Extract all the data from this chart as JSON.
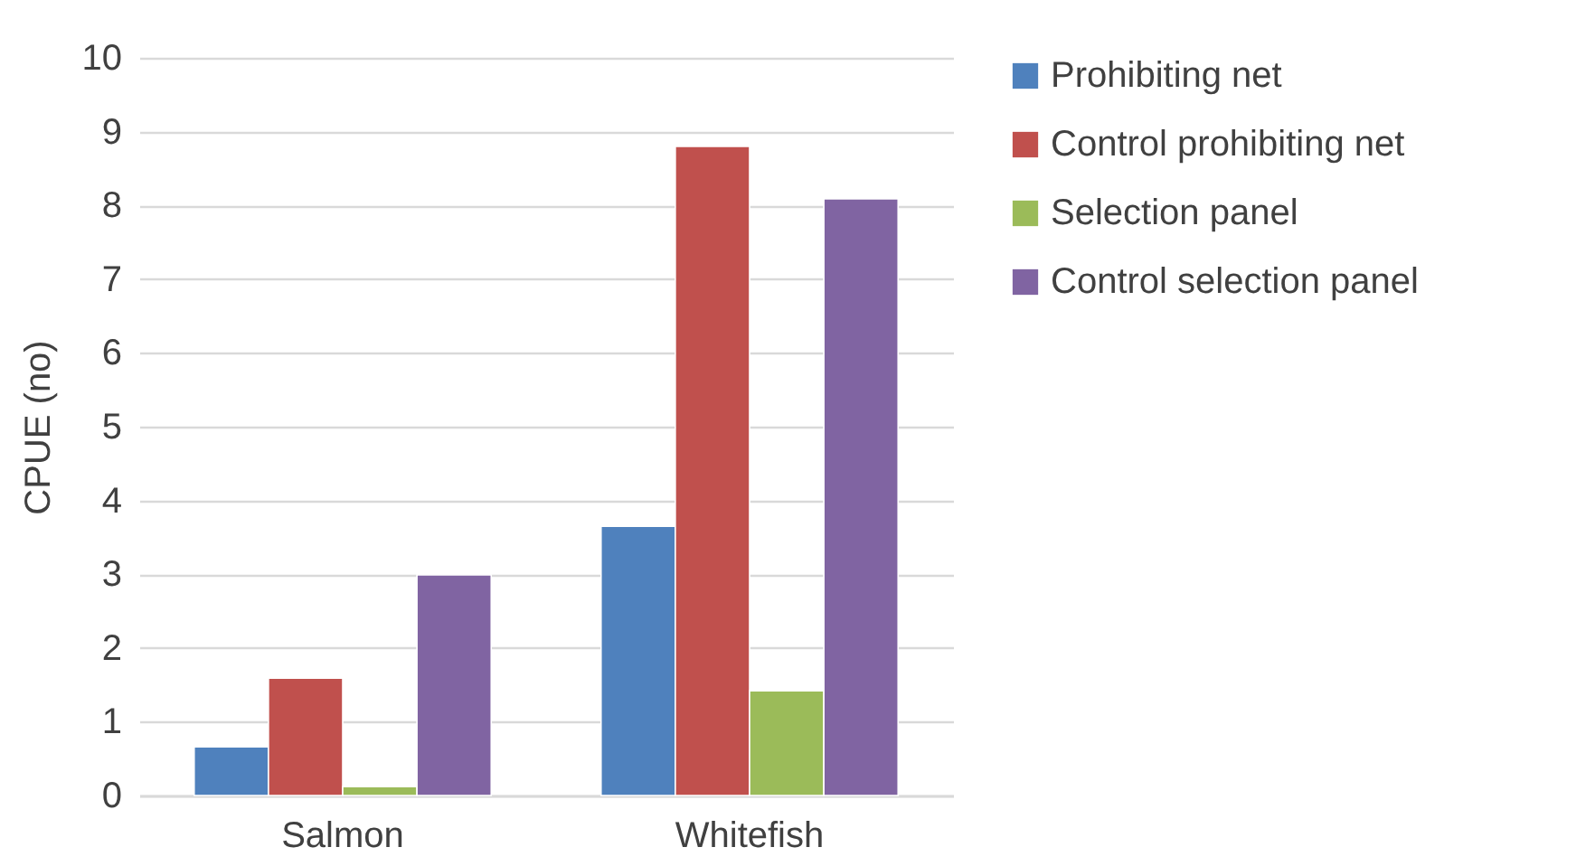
{
  "chart_data": {
    "type": "bar",
    "ylabel": "CPUE (no)",
    "categories": [
      "Salmon",
      "Whitefish"
    ],
    "series": [
      {
        "name": "Prohibiting net",
        "color": "#4f81bd",
        "values": [
          0.66,
          3.65
        ]
      },
      {
        "name": "Control prohibiting net",
        "color": "#c0504d",
        "values": [
          1.59,
          8.8
        ]
      },
      {
        "name": "Selection panel",
        "color": "#9bbb59",
        "values": [
          0.12,
          1.42
        ]
      },
      {
        "name": "Control selection panel",
        "color": "#8064a2",
        "values": [
          2.99,
          8.09
        ]
      }
    ],
    "ylim": [
      0,
      10
    ],
    "yticks": [
      0,
      1,
      2,
      3,
      4,
      5,
      6,
      7,
      8,
      9,
      10
    ],
    "grid": "y",
    "legend": "right"
  }
}
